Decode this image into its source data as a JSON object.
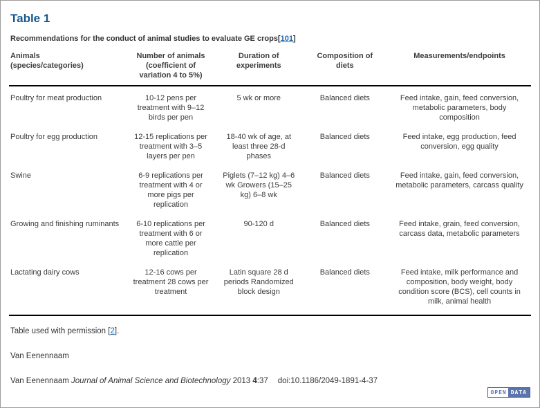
{
  "header": {
    "title": "Table 1",
    "subtitle_prefix": "Recommendations for the conduct of animal studies to evaluate GE crops[",
    "subtitle_ref": "101",
    "subtitle_suffix": "]"
  },
  "table": {
    "columns": [
      {
        "label": "Animals\n(species/categories)"
      },
      {
        "label": "Number of animals\n(coefficient of\nvariation 4 to 5%)"
      },
      {
        "label": "Duration of\nexperiments"
      },
      {
        "label": "Composition of\ndiets"
      },
      {
        "label": "Measurements/endpoints"
      }
    ],
    "rows": [
      {
        "cells": [
          "Poultry for meat production",
          "10-12 pens per treatment with 9–12 birds per pen",
          "5 wk or more",
          "Balanced diets",
          "Feed intake, gain, feed conversion, metabolic parameters, body composition"
        ]
      },
      {
        "cells": [
          "Poultry for egg production",
          "12-15 replications per treatment with 3–5 layers per pen",
          "18-40 wk of age, at least three 28-d phases",
          "Balanced diets",
          "Feed intake, egg production, feed conversion, egg quality"
        ]
      },
      {
        "cells": [
          "Swine",
          "6-9 replications per treatment with 4 or more pigs per replication",
          "Piglets (7–12 kg) 4–6 wk Growers (15–25 kg) 6–8 wk",
          "Balanced diets",
          "Feed intake, gain, feed conversion, metabolic parameters, carcass quality"
        ]
      },
      {
        "cells": [
          "Growing and finishing ruminants",
          "6-10 replications per treatment with 6 or more cattle per replication",
          "90-120 d",
          "Balanced diets",
          "Feed intake, grain, feed conversion, carcass data, metabolic parameters"
        ]
      },
      {
        "cells": [
          "Lactating dairy cows",
          "12-16 cows per treatment 28 cows per treatment",
          "Latin square 28 d periods Randomized block design",
          "Balanced diets",
          "Feed intake, milk performance and composition, body weight, body condition score (BCS), cell counts in milk, animal health"
        ]
      }
    ]
  },
  "footer": {
    "permission_prefix": "Table used with permission [",
    "permission_ref": "2",
    "permission_suffix": "].",
    "author": "Van Eenennaam",
    "citation": {
      "author": "Van Eenennaam ",
      "journal": "Journal of Animal Science and Biotechnology",
      "year": " 2013 ",
      "volume": "4",
      "pages": ":37",
      "doi": "doi:10.1186/2049-1891-4-37"
    },
    "badge": {
      "open": "OPEN",
      "data": "DATA"
    }
  },
  "colors": {
    "title_blue": "#15568d",
    "link_blue": "#1f66ad",
    "badge_blue": "#5b74ae",
    "rule_black": "#000000",
    "body_text": "#3a3a3a",
    "page_border": "#9b9b9b"
  }
}
